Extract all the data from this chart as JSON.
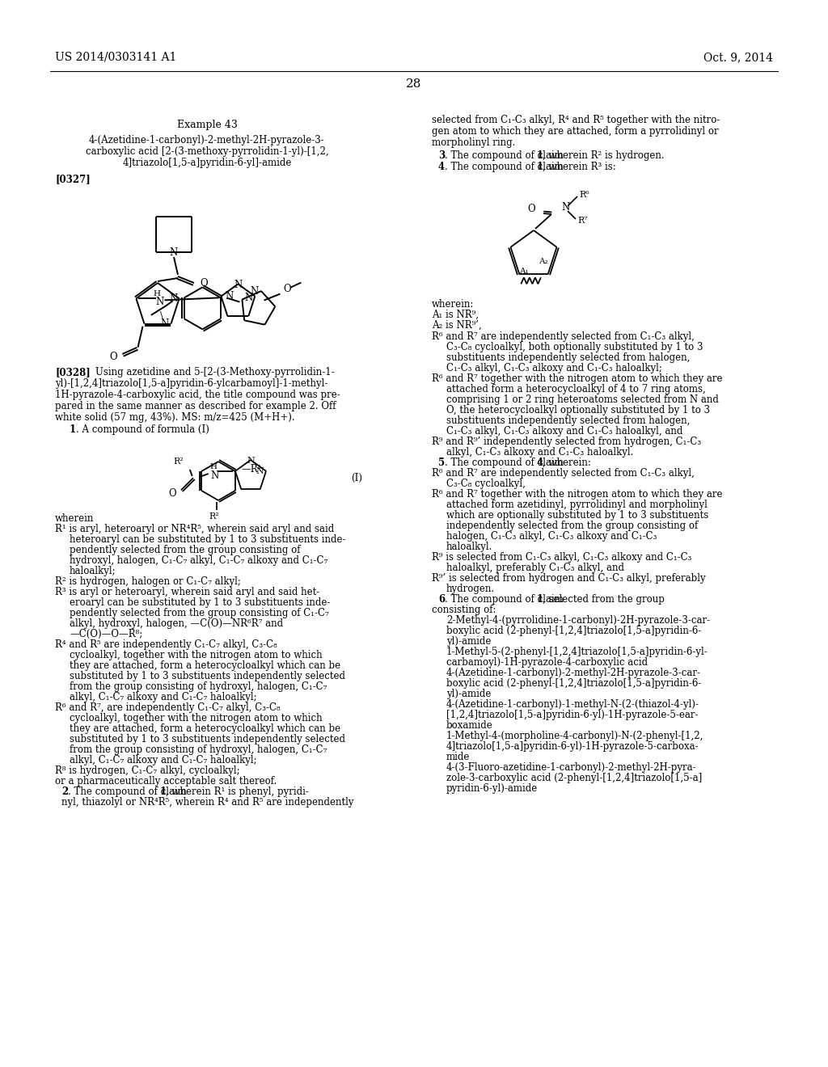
{
  "background_color": "#ffffff",
  "header_left": "US 2014/0303141 A1",
  "header_right": "Oct. 9, 2014",
  "page_number": "28"
}
